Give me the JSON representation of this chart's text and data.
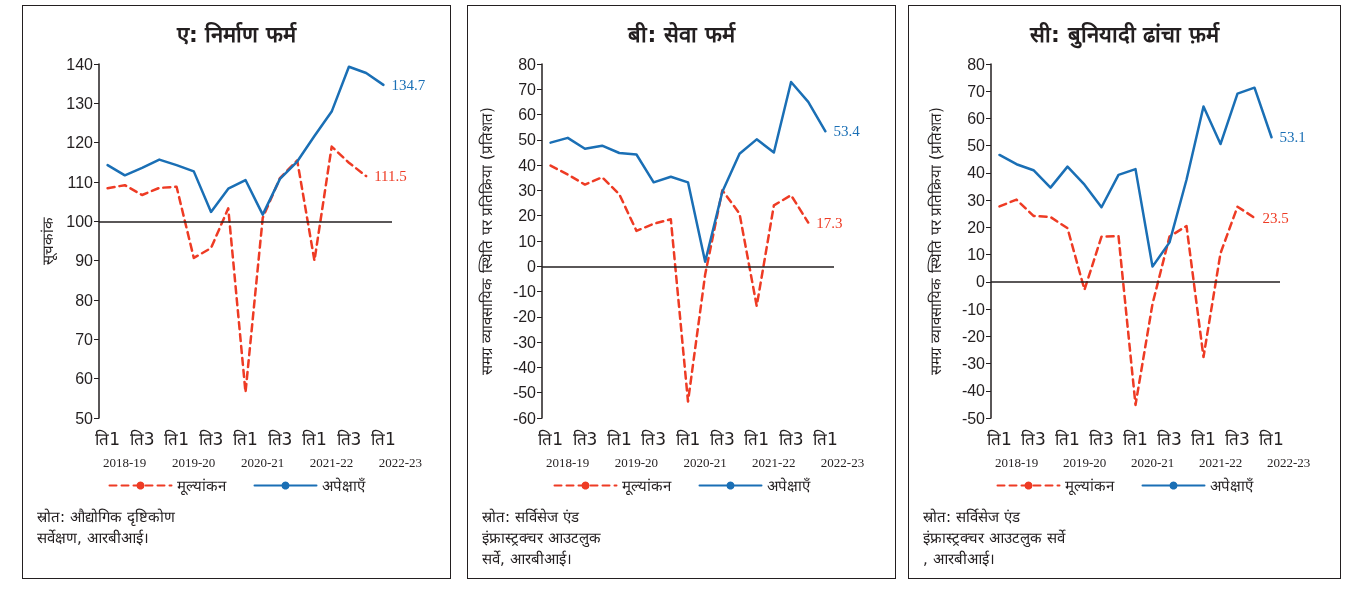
{
  "chart_data": [
    {
      "type": "line",
      "title": "ए: निर्माण फर्म",
      "ylabel": "सूचकांक",
      "categories": [
        "ति1",
        null,
        "ति3",
        null,
        "ति1",
        null,
        "ति3",
        null,
        "ति1",
        null,
        "ति3",
        null,
        "ति1",
        null,
        "ति3",
        null,
        "ति1"
      ],
      "series": [
        {
          "name": "मूल्यांकन",
          "color": "#ee3b24",
          "line_style": "dashed",
          "values": [
            108.4,
            109.2,
            106.7,
            108.5,
            108.8,
            90.7,
            93.2,
            103.3,
            56.5,
            100.9,
            111.0,
            115.5,
            90.0,
            119.0,
            114.9,
            111.5,
            null
          ],
          "value_labels": [
            null,
            null,
            null,
            null,
            null,
            null,
            null,
            null,
            null,
            null,
            null,
            null,
            null,
            null,
            null,
            "111.5",
            null
          ]
        },
        {
          "name": "अपेक्षाएँ",
          "color": "#1a6fb5",
          "line_style": "solid",
          "values": [
            114.3,
            111.7,
            113.6,
            115.7,
            114.3,
            112.7,
            102.4,
            108.3,
            110.5,
            101.7,
            110.8,
            115.2,
            121.7,
            127.9,
            139.3,
            137.7,
            134.7
          ],
          "value_labels": [
            null,
            null,
            null,
            null,
            null,
            null,
            null,
            null,
            null,
            null,
            null,
            null,
            null,
            null,
            null,
            null,
            "134.7"
          ]
        }
      ],
      "ylim": [
        50,
        140
      ],
      "yticks": [
        50,
        60,
        70,
        80,
        90,
        100,
        110,
        120,
        130,
        140
      ],
      "ref_lines": [
        {
          "axis": "y",
          "value": 100,
          "color": "#231f20"
        }
      ],
      "marker": "none",
      "grid": false,
      "legend": "bottom",
      "annotations": [
        "2018-19",
        "2019-20",
        "2020-21",
        "2021-22",
        "2022-23",
        "स्रोत: औद्योगिक दृष्टिकोण सर्वेक्षण, आरबीआई।"
      ]
    },
    {
      "type": "line",
      "title": "बी: सेवा फर्म",
      "ylabel": "समग्र व्यावसायिक स्थिति पर प्रतिक्रिया (प्रतिशत)",
      "categories": [
        "ति1",
        null,
        "ति3",
        null,
        "ति1",
        null,
        "ति3",
        null,
        "ति1",
        null,
        "ति3",
        null,
        "ति1",
        null,
        "ति3",
        null,
        "ति1"
      ],
      "series": [
        {
          "name": "मूल्यांकन",
          "color": "#ee3b24",
          "line_style": "dashed",
          "values": [
            39.8,
            36.3,
            32.3,
            35.2,
            28.5,
            14.0,
            16.8,
            18.6,
            -53.5,
            -3.2,
            30.1,
            20.8,
            -15.7,
            24.1,
            28.1,
            17.3,
            null
          ],
          "value_labels": [
            null,
            null,
            null,
            null,
            null,
            null,
            null,
            null,
            null,
            null,
            null,
            null,
            null,
            null,
            null,
            "17.3",
            null
          ]
        },
        {
          "name": "अपेक्षाएँ",
          "color": "#1a6fb5",
          "line_style": "solid",
          "values": [
            48.9,
            50.8,
            46.5,
            47.7,
            44.8,
            44.2,
            33.2,
            35.4,
            33.2,
            1.8,
            29.5,
            44.5,
            50.2,
            45.0,
            72.9,
            65.0,
            53.4
          ],
          "value_labels": [
            null,
            null,
            null,
            null,
            null,
            null,
            null,
            null,
            null,
            null,
            null,
            null,
            null,
            null,
            null,
            null,
            "53.4"
          ]
        }
      ],
      "ylim": [
        -60,
        80
      ],
      "yticks": [
        -60,
        -50,
        -40,
        -30,
        -20,
        -10,
        0,
        10,
        20,
        30,
        40,
        50,
        60,
        70,
        80
      ],
      "ref_lines": [
        {
          "axis": "y",
          "value": 0,
          "color": "#231f20"
        }
      ],
      "marker": "none",
      "grid": false,
      "legend": "bottom",
      "annotations": [
        "2018-19",
        "2019-20",
        "2020-21",
        "2021-22",
        "2022-23",
        "स्रोत: सर्विसेज एंड इंफ्रास्ट्रक्चर आउटलुक सर्वे, आरबीआई।"
      ]
    },
    {
      "type": "line",
      "title": "सी: बुनियादी ढांचा फ़र्म",
      "ylabel": "समग्र व्यावसायिक स्थिति पर प्रतिक्रिया (प्रतिशत)",
      "categories": [
        "ति1",
        null,
        "ति3",
        null,
        "ति1",
        null,
        "ति3",
        null,
        "ति1",
        null,
        "ति3",
        null,
        "ति1",
        null,
        "ति3",
        null,
        "ति1"
      ],
      "series": [
        {
          "name": "मूल्यांकन",
          "color": "#ee3b24",
          "line_style": "dashed",
          "values": [
            27.7,
            30.2,
            24.2,
            23.8,
            19.7,
            -2.9,
            16.6,
            16.8,
            -45.2,
            -8.1,
            16.6,
            20.5,
            -27.6,
            10.5,
            27.6,
            23.5,
            null
          ],
          "value_labels": [
            null,
            null,
            null,
            null,
            null,
            null,
            null,
            null,
            null,
            null,
            null,
            null,
            null,
            null,
            null,
            "23.5",
            null
          ]
        },
        {
          "name": "अपेक्षाएँ",
          "color": "#1a6fb5",
          "line_style": "solid",
          "values": [
            46.6,
            43.2,
            41.0,
            34.6,
            42.3,
            35.7,
            27.4,
            39.3,
            41.4,
            5.6,
            14.5,
            37.5,
            64.4,
            50.6,
            69.1,
            71.3,
            53.1
          ],
          "value_labels": [
            null,
            null,
            null,
            null,
            null,
            null,
            null,
            null,
            null,
            null,
            null,
            null,
            null,
            null,
            null,
            null,
            "53.1"
          ]
        }
      ],
      "ylim": [
        -50,
        80
      ],
      "yticks": [
        -50,
        -40,
        -30,
        -20,
        -10,
        0,
        10,
        20,
        30,
        40,
        50,
        60,
        70,
        80
      ],
      "ref_lines": [
        {
          "axis": "y",
          "value": 0,
          "color": "#231f20"
        }
      ],
      "marker": "none",
      "grid": false,
      "legend": "bottom",
      "annotations": [
        "2018-19",
        "2019-20",
        "2020-21",
        "2021-22",
        "2022-23",
        "स्रोत: सर्विसेज एंड इंफ्रास्ट्रक्चर आउटलुक सर्वे, आरबीआई।"
      ]
    }
  ]
}
